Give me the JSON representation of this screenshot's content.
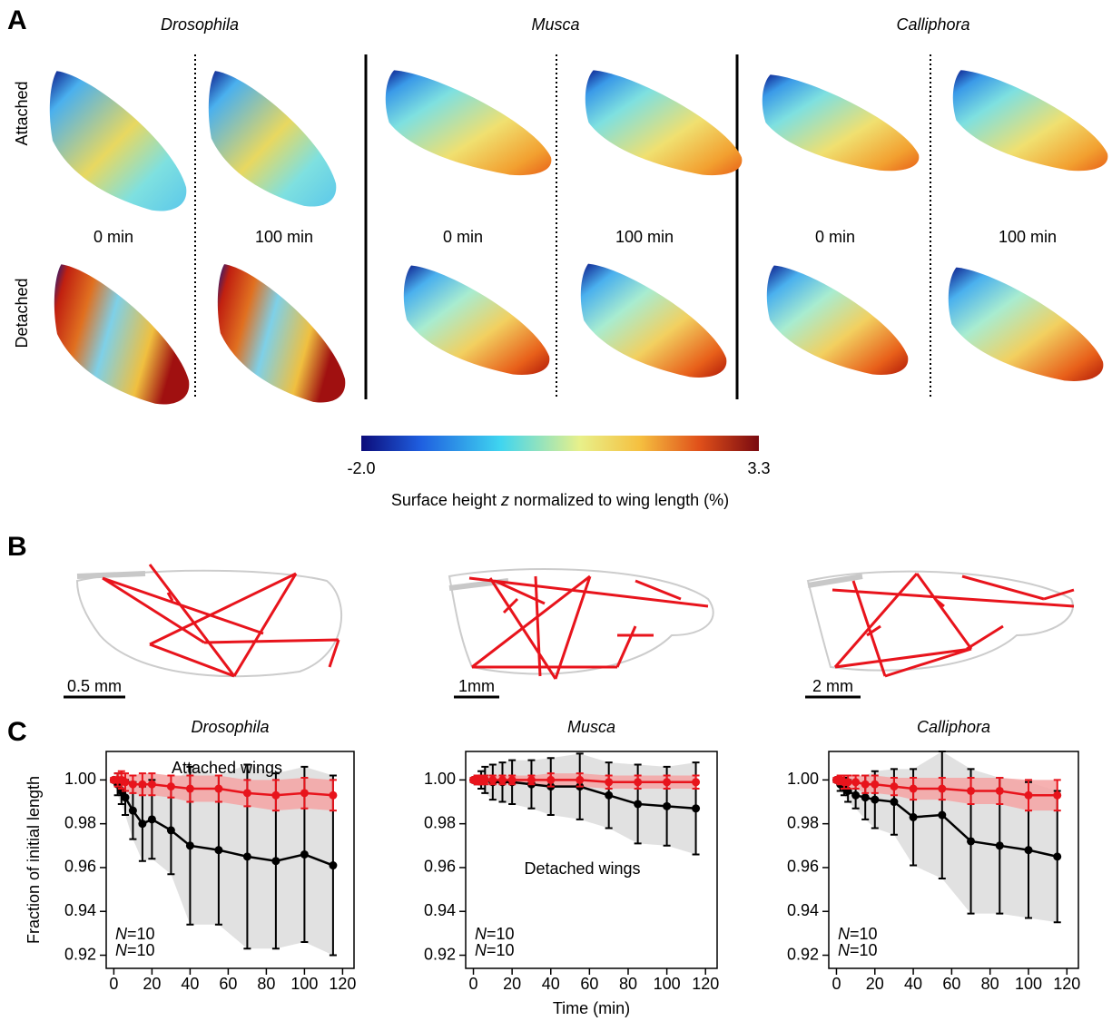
{
  "panel_labels": [
    "A",
    "B",
    "C"
  ],
  "panel_a": {
    "species": [
      "Drosophila",
      "Musca",
      "Calliphora"
    ],
    "rows": [
      "Attached",
      "Detached"
    ],
    "times": [
      "0 min",
      "100 min"
    ],
    "colorbar": {
      "ticks": [
        {
          "value": -2,
          "label": "-2.0"
        },
        {
          "value": 3.3,
          "label": "3.3"
        }
      ],
      "label_parts": [
        "Surface height ",
        "z",
        " normalized to wing length (%)"
      ]
    }
  },
  "panel_b": {
    "scale_bars": [
      "0.5 mm",
      "1mm",
      "2 mm"
    ]
  },
  "chart_data": [
    {
      "type": "line",
      "title": "Drosophila",
      "ylabel": "Fraction of initial length",
      "x": [
        0,
        2,
        4,
        6,
        10,
        15,
        20,
        30,
        40,
        55,
        70,
        85,
        100,
        115
      ],
      "series": [
        {
          "color": "#000000",
          "band_color": "#dcdcdc",
          "values": [
            1.0,
            0.998,
            0.995,
            0.992,
            0.986,
            0.98,
            0.982,
            0.977,
            0.97,
            0.968,
            0.965,
            0.963,
            0.966,
            0.961
          ],
          "errors": [
            0.001,
            0.005,
            0.006,
            0.008,
            0.013,
            0.017,
            0.018,
            0.02,
            0.036,
            0.034,
            0.042,
            0.04,
            0.04,
            0.041
          ]
        },
        {
          "color": "#e8141c",
          "band_color": "#f4a3a3",
          "values": [
            1.0,
            1.0,
            1.0,
            0.999,
            0.998,
            0.998,
            0.998,
            0.997,
            0.996,
            0.996,
            0.994,
            0.993,
            0.994,
            0.993
          ],
          "errors": [
            0.001,
            0.003,
            0.004,
            0.004,
            0.004,
            0.005,
            0.005,
            0.005,
            0.006,
            0.006,
            0.006,
            0.007,
            0.007,
            0.007
          ]
        }
      ],
      "annotations": [
        {
          "text": "Attached wings",
          "color": "#e8141c"
        }
      ],
      "n_labels": [
        {
          "symbol": "N",
          "text": "=10",
          "color": "#e8141c"
        },
        {
          "symbol": "N",
          "text": "=10",
          "color": "#000000"
        }
      ],
      "xlim": [
        -4,
        126
      ],
      "ylim": [
        0.914,
        1.013
      ],
      "xticks": [
        0,
        20,
        40,
        60,
        80,
        100,
        120
      ],
      "yticks": [
        {
          "value": 0.92,
          "label": "0.92"
        },
        {
          "value": 0.94,
          "label": "0.94"
        },
        {
          "value": 0.96,
          "label": "0.96"
        },
        {
          "value": 0.98,
          "label": "0.98"
        },
        {
          "value": 1.0,
          "label": "1.00"
        }
      ]
    },
    {
      "type": "line",
      "title": "Musca",
      "xlabel": "Time (min)",
      "x": [
        0,
        2,
        4,
        6,
        10,
        15,
        20,
        30,
        40,
        55,
        70,
        85,
        100,
        115
      ],
      "series": [
        {
          "color": "#000000",
          "band_color": "#dcdcdc",
          "values": [
            1.0,
            1.0,
            1.0,
            1.0,
            0.999,
            0.999,
            0.999,
            0.998,
            0.997,
            0.997,
            0.993,
            0.989,
            0.988,
            0.987
          ],
          "errors": [
            0.001,
            0.002,
            0.004,
            0.006,
            0.008,
            0.009,
            0.01,
            0.011,
            0.013,
            0.015,
            0.015,
            0.018,
            0.018,
            0.021
          ]
        },
        {
          "color": "#e8141c",
          "band_color": "#f4a3a3",
          "values": [
            1.0,
            1.0,
            1.0,
            1.0,
            1.0,
            1.0,
            1.0,
            1.0,
            1.0,
            1.0,
            0.999,
            0.999,
            0.999,
            0.999
          ],
          "errors": [
            0.001,
            0.002,
            0.002,
            0.002,
            0.002,
            0.002,
            0.002,
            0.002,
            0.003,
            0.003,
            0.003,
            0.003,
            0.003,
            0.003
          ]
        }
      ],
      "annotations": [
        {
          "text": "Detached wings",
          "color": "#000000"
        }
      ],
      "n_labels": [
        {
          "symbol": "N",
          "text": "=10",
          "color": "#e8141c"
        },
        {
          "symbol": "N",
          "text": "=10",
          "color": "#000000"
        }
      ],
      "xlim": [
        -4,
        126
      ],
      "ylim": [
        0.914,
        1.013
      ],
      "xticks": [
        0,
        20,
        40,
        60,
        80,
        100,
        120
      ],
      "yticks": [
        {
          "value": 0.92,
          "label": "0.92"
        },
        {
          "value": 0.94,
          "label": "0.94"
        },
        {
          "value": 0.96,
          "label": "0.96"
        },
        {
          "value": 0.98,
          "label": "0.98"
        },
        {
          "value": 1.0,
          "label": "1.00"
        }
      ]
    },
    {
      "type": "line",
      "title": "Calliphora",
      "x": [
        0,
        2,
        4,
        6,
        10,
        15,
        20,
        30,
        40,
        55,
        70,
        85,
        100,
        115
      ],
      "series": [
        {
          "color": "#000000",
          "band_color": "#dcdcdc",
          "values": [
            1.0,
            0.998,
            0.997,
            0.995,
            0.993,
            0.992,
            0.991,
            0.99,
            0.983,
            0.984,
            0.972,
            0.97,
            0.968,
            0.965
          ],
          "errors": [
            0.001,
            0.003,
            0.004,
            0.005,
            0.006,
            0.01,
            0.013,
            0.015,
            0.022,
            0.029,
            0.033,
            0.031,
            0.031,
            0.03
          ]
        },
        {
          "color": "#e8141c",
          "band_color": "#f4a3a3",
          "values": [
            1.0,
            1.0,
            0.999,
            0.999,
            0.999,
            0.998,
            0.998,
            0.997,
            0.996,
            0.996,
            0.995,
            0.995,
            0.993,
            0.993
          ],
          "errors": [
            0.001,
            0.002,
            0.003,
            0.003,
            0.003,
            0.004,
            0.004,
            0.004,
            0.005,
            0.005,
            0.006,
            0.006,
            0.007,
            0.007
          ]
        }
      ],
      "n_labels": [
        {
          "symbol": "N",
          "text": "=10",
          "color": "#e8141c"
        },
        {
          "symbol": "N",
          "text": "=10",
          "color": "#000000"
        }
      ],
      "xlim": [
        -4,
        126
      ],
      "ylim": [
        0.914,
        1.013
      ],
      "xticks": [
        0,
        20,
        40,
        60,
        80,
        100,
        120
      ],
      "yticks": [
        {
          "value": 0.92,
          "label": "0.92"
        },
        {
          "value": 0.94,
          "label": "0.94"
        },
        {
          "value": 0.96,
          "label": "0.96"
        },
        {
          "value": 0.98,
          "label": "0.98"
        },
        {
          "value": 1.0,
          "label": "1.00"
        }
      ]
    }
  ]
}
